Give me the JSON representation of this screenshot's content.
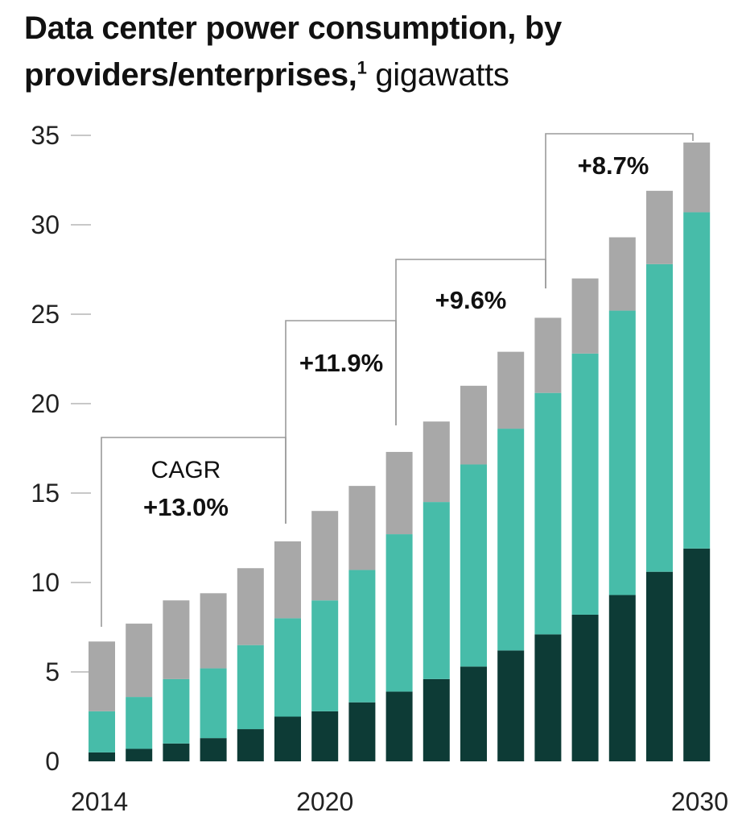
{
  "title": {
    "main": "Data center power consumption, by providers/enterprises,",
    "footnote": "1",
    "unit": "gigawatts"
  },
  "colors": {
    "series_dark": "#0d3b36",
    "series_teal": "#47bca9",
    "series_gray": "#a8a8a8",
    "bracket": "#9a9a9a",
    "axis_tick": "#b5b5b5"
  },
  "chart_data": {
    "type": "bar",
    "stacked": true,
    "categories": [
      "2014",
      "2015",
      "2016",
      "2017",
      "2018",
      "2019",
      "2020",
      "2021",
      "2022",
      "2023",
      "2024",
      "2025",
      "2026",
      "2027",
      "2028",
      "2029",
      "2030"
    ],
    "x_tick_labels": [
      "2014",
      "2020",
      "2030"
    ],
    "x_tick_indices": [
      0,
      6,
      16
    ],
    "ylim": [
      0,
      35
    ],
    "yticks": [
      0,
      5,
      10,
      15,
      20,
      25,
      30,
      35
    ],
    "grid": false,
    "series": [
      {
        "values": [
          0.5,
          0.7,
          1.0,
          1.3,
          1.8,
          2.5,
          2.8,
          3.3,
          3.9,
          4.6,
          5.3,
          6.2,
          7.1,
          8.2,
          9.3,
          10.6,
          11.9
        ]
      },
      {
        "values": [
          2.3,
          2.9,
          3.6,
          3.9,
          4.7,
          5.5,
          6.2,
          7.4,
          8.8,
          9.9,
          11.3,
          12.4,
          13.5,
          14.6,
          15.9,
          17.2,
          18.8
        ]
      },
      {
        "values": [
          3.9,
          4.1,
          4.4,
          4.2,
          4.3,
          4.3,
          5.0,
          4.7,
          4.6,
          4.5,
          4.4,
          4.3,
          4.2,
          4.2,
          4.1,
          4.1,
          3.9
        ]
      }
    ],
    "annotations": [
      {
        "label": "CAGR",
        "value": "+13.0%"
      },
      {
        "value": "+11.9%"
      },
      {
        "value": "+9.6%"
      },
      {
        "value": "+8.7%"
      }
    ]
  }
}
